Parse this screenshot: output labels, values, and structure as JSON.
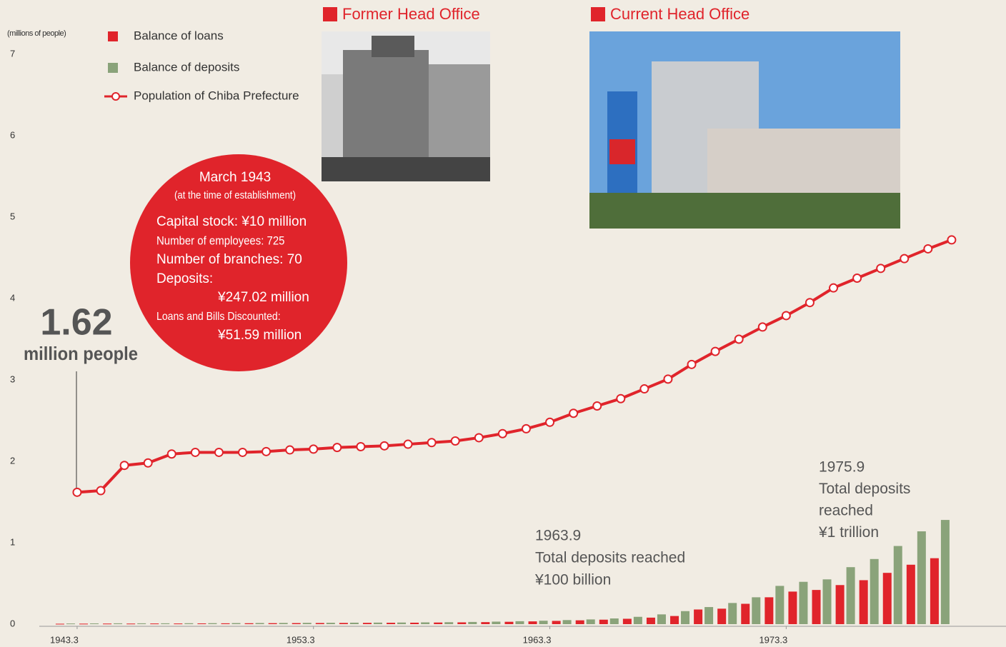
{
  "chart_data": {
    "type": "bar-line",
    "y_axis_label": "(millions of people)",
    "ylim": [
      0,
      7
    ],
    "yticks": [
      0,
      1,
      2,
      3,
      4,
      5,
      6,
      7
    ],
    "xlim": [
      1941.4,
      1982.3
    ],
    "xticks": [
      {
        "value": 1943,
        "label": "1943.3"
      },
      {
        "value": 1953,
        "label": "1953.3"
      },
      {
        "value": 1963,
        "label": "1963.3"
      },
      {
        "value": 1973,
        "label": "1973.3"
      }
    ],
    "x": [
      1943,
      1944,
      1945,
      1946,
      1947,
      1948,
      1949,
      1950,
      1951,
      1952,
      1953,
      1954,
      1955,
      1956,
      1957,
      1958,
      1959,
      1960,
      1961,
      1962,
      1963,
      1964,
      1965,
      1966,
      1967,
      1968,
      1969,
      1970,
      1971,
      1972,
      1973,
      1974,
      1975,
      1976,
      1977,
      1978,
      1979,
      1980
    ],
    "series": [
      {
        "name": "Balance of loans",
        "type": "bar",
        "color": "#e0242b",
        "values": [
          0.005,
          0.006,
          0.007,
          0.007,
          0.008,
          0.008,
          0.009,
          0.01,
          0.011,
          0.012,
          0.013,
          0.014,
          0.015,
          0.016,
          0.017,
          0.018,
          0.02,
          0.022,
          0.025,
          0.029,
          0.034,
          0.04,
          0.047,
          0.055,
          0.066,
          0.08,
          0.1,
          0.18,
          0.19,
          0.25,
          0.33,
          0.4,
          0.42,
          0.48,
          0.54,
          0.63,
          0.73,
          0.81
        ]
      },
      {
        "name": "Balance of deposits",
        "type": "bar",
        "color": "#8aa37a",
        "values": [
          0.008,
          0.009,
          0.01,
          0.01,
          0.01,
          0.011,
          0.012,
          0.013,
          0.014,
          0.015,
          0.016,
          0.017,
          0.018,
          0.019,
          0.02,
          0.022,
          0.024,
          0.027,
          0.031,
          0.036,
          0.042,
          0.05,
          0.058,
          0.07,
          0.09,
          0.12,
          0.16,
          0.21,
          0.26,
          0.33,
          0.47,
          0.52,
          0.55,
          0.7,
          0.8,
          0.96,
          1.14,
          1.28
        ]
      },
      {
        "name": "Population of Chiba Prefecture",
        "type": "line",
        "color": "#e0242b",
        "values": [
          1.62,
          1.64,
          1.95,
          1.98,
          2.09,
          2.11,
          2.11,
          2.11,
          2.12,
          2.14,
          2.15,
          2.17,
          2.18,
          2.19,
          2.21,
          2.23,
          2.25,
          2.29,
          2.34,
          2.4,
          2.48,
          2.59,
          2.68,
          2.77,
          2.89,
          3.01,
          3.19,
          3.35,
          3.5,
          3.65,
          3.79,
          3.95,
          4.13,
          4.25,
          4.37,
          4.49,
          4.61,
          4.72
        ]
      }
    ],
    "photo_titles": [
      "Former Head Office",
      "Current Head Office"
    ],
    "callout": [
      "March 1943",
      "(at the time of establishment)",
      "Capital stock: ¥10 million",
      "Number of employees: 725",
      "Number of branches: 70",
      "Deposits:",
      "¥247.02 million",
      "Loans and Bills Discounted:",
      "¥51.59 million"
    ],
    "start_label": [
      "1.62",
      "million people"
    ],
    "annotation_1963": [
      "1963.9",
      "Total deposits reached",
      "¥100 billion"
    ],
    "annotation_1975": [
      "1975.9",
      "Total deposits",
      "reached",
      "¥1 trillion"
    ]
  }
}
